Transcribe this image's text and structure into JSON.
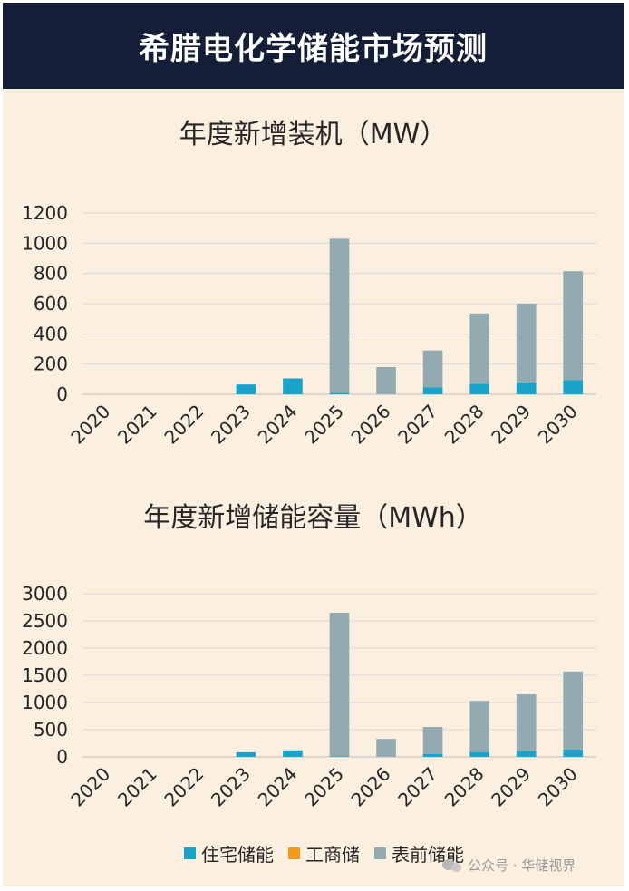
{
  "header": {
    "title": "希腊电化学储能市场预测"
  },
  "colors": {
    "residential": "#1aa3c9",
    "commercial": "#f59a1b",
    "front_of_meter": "#93aab0",
    "header_bg": "#141e36",
    "panel_bg": "#fbefe0",
    "grid": "#d9d9d9"
  },
  "legend": {
    "residential": "住宅储能",
    "commercial": "工商储",
    "front_of_meter": "表前储能"
  },
  "watermark": {
    "text": "公众号 · 华储视界"
  },
  "chart_data": [
    {
      "type": "bar",
      "stacked": true,
      "title": "年度新增装机（MW）",
      "categories": [
        "2020",
        "2021",
        "2022",
        "2023",
        "2024",
        "2025",
        "2026",
        "2027",
        "2028",
        "2029",
        "2030"
      ],
      "series": [
        {
          "name": "住宅储能",
          "color": "#1aa3c9",
          "values": [
            0,
            0,
            0,
            65,
            105,
            10,
            0,
            45,
            70,
            80,
            95
          ]
        },
        {
          "name": "工商储",
          "color": "#f59a1b",
          "values": [
            0,
            0,
            0,
            0,
            0,
            0,
            0,
            0,
            0,
            0,
            0
          ]
        },
        {
          "name": "表前储能",
          "color": "#93aab0",
          "values": [
            0,
            0,
            0,
            0,
            0,
            1020,
            180,
            245,
            465,
            520,
            720
          ]
        }
      ],
      "ylim": [
        0,
        1200
      ],
      "yticks": [
        0,
        200,
        400,
        600,
        800,
        1000,
        1200
      ],
      "grid": true,
      "legend": "bottom"
    },
    {
      "type": "bar",
      "stacked": true,
      "title": "年度新增储能容量（MWh）",
      "categories": [
        "2020",
        "2021",
        "2022",
        "2023",
        "2024",
        "2025",
        "2026",
        "2027",
        "2028",
        "2029",
        "2030"
      ],
      "series": [
        {
          "name": "住宅储能",
          "color": "#1aa3c9",
          "values": [
            0,
            0,
            0,
            85,
            120,
            10,
            0,
            55,
            90,
            110,
            135
          ]
        },
        {
          "name": "工商储",
          "color": "#f59a1b",
          "values": [
            0,
            0,
            0,
            0,
            0,
            0,
            0,
            0,
            0,
            0,
            0
          ]
        },
        {
          "name": "表前储能",
          "color": "#93aab0",
          "values": [
            0,
            0,
            0,
            0,
            0,
            2640,
            330,
            495,
            940,
            1040,
            1435
          ]
        }
      ],
      "ylim": [
        0,
        3000
      ],
      "yticks": [
        0,
        500,
        1000,
        1500,
        2000,
        2500,
        3000
      ],
      "grid": true,
      "legend": "bottom"
    }
  ]
}
